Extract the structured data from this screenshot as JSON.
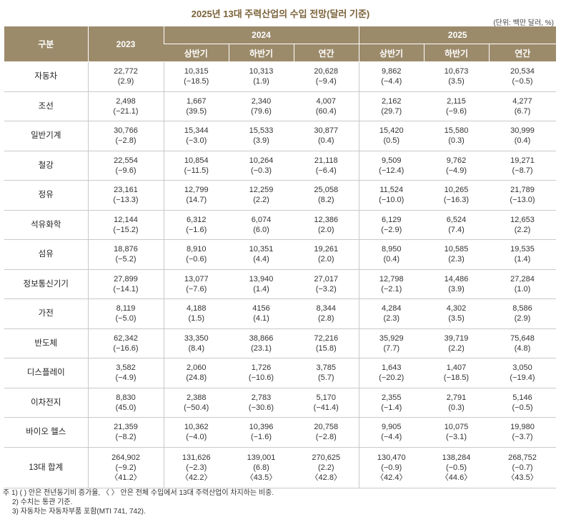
{
  "title": "2025년 13대 주력산업의 수입 전망(달러 기준)",
  "unit": "(단위: 백만 달러, %)",
  "header": {
    "category": "구분",
    "y2023": "2023",
    "y2024": "2024",
    "y2025": "2025",
    "h1": "상반기",
    "h2": "하반기",
    "annual": "연간"
  },
  "rows": [
    {
      "name": "자동차",
      "c": [
        [
          "22,772",
          "(2.9)"
        ],
        [
          "10,315",
          "(−18.5)"
        ],
        [
          "10,313",
          "(1.9)"
        ],
        [
          "20,628",
          "(−9.4)"
        ],
        [
          "9,862",
          "(−4.4)"
        ],
        [
          "10,673",
          "(3.5)"
        ],
        [
          "20,534",
          "(−0.5)"
        ]
      ]
    },
    {
      "name": "조선",
      "c": [
        [
          "2,498",
          "(−21.1)"
        ],
        [
          "1,667",
          "(39.5)"
        ],
        [
          "2,340",
          "(79.6)"
        ],
        [
          "4,007",
          "(60.4)"
        ],
        [
          "2,162",
          "(29.7)"
        ],
        [
          "2,115",
          "(−9.6)"
        ],
        [
          "4,277",
          "(6.7)"
        ]
      ]
    },
    {
      "name": "일반기계",
      "c": [
        [
          "30,766",
          "(−2.8)"
        ],
        [
          "15,344",
          "(−3.0)"
        ],
        [
          "15,533",
          "(3.9)"
        ],
        [
          "30,877",
          "(0.4)"
        ],
        [
          "15,420",
          "(0.5)"
        ],
        [
          "15,580",
          "(0.3)"
        ],
        [
          "30,999",
          "(0.4)"
        ]
      ]
    },
    {
      "name": "철강",
      "c": [
        [
          "22,554",
          "(−9.6)"
        ],
        [
          "10,854",
          "(−11.5)"
        ],
        [
          "10,264",
          "(−0.3)"
        ],
        [
          "21,118",
          "(−6.4)"
        ],
        [
          "9,509",
          "(−12.4)"
        ],
        [
          "9,762",
          "(−4.9)"
        ],
        [
          "19,271",
          "(−8.7)"
        ]
      ]
    },
    {
      "name": "정유",
      "c": [
        [
          "23,161",
          "(−13.3)"
        ],
        [
          "12,799",
          "(14.7)"
        ],
        [
          "12,259",
          "(2.2)"
        ],
        [
          "25,058",
          "(8.2)"
        ],
        [
          "11,524",
          "(−10.0)"
        ],
        [
          "10,265",
          "(−16.3)"
        ],
        [
          "21,789",
          "(−13.0)"
        ]
      ]
    },
    {
      "name": "석유화학",
      "c": [
        [
          "12,144",
          "(−15.2)"
        ],
        [
          "6,312",
          "(−1.6)"
        ],
        [
          "6,074",
          "(6.0)"
        ],
        [
          "12,386",
          "(2.0)"
        ],
        [
          "6,129",
          "(−2.9)"
        ],
        [
          "6,524",
          "(7.4)"
        ],
        [
          "12,653",
          "(2.2)"
        ]
      ]
    },
    {
      "name": "섬유",
      "c": [
        [
          "18,876",
          "(−5.2)"
        ],
        [
          "8,910",
          "(−0.6)"
        ],
        [
          "10,351",
          "(4.4)"
        ],
        [
          "19,261",
          "(2.0)"
        ],
        [
          "8,950",
          "(0.4)"
        ],
        [
          "10,585",
          "(2.3)"
        ],
        [
          "19,535",
          "(1.4)"
        ]
      ]
    },
    {
      "name": "정보통신기기",
      "c": [
        [
          "27,899",
          "(−14.1)"
        ],
        [
          "13,077",
          "(−7.6)"
        ],
        [
          "13,940",
          "(1.4)"
        ],
        [
          "27,017",
          "(−3.2)"
        ],
        [
          "12,798",
          "(−2.1)"
        ],
        [
          "14,486",
          "(3.9)"
        ],
        [
          "27,284",
          "(1.0)"
        ]
      ]
    },
    {
      "name": "가전",
      "c": [
        [
          "8,119",
          "(−5.0)"
        ],
        [
          "4,188",
          "(1.5)"
        ],
        [
          "4156",
          "(4.1)"
        ],
        [
          "8,344",
          "(2.8)"
        ],
        [
          "4,284",
          "(2.3)"
        ],
        [
          "4,302",
          "(3.5)"
        ],
        [
          "8,586",
          "(2.9)"
        ]
      ]
    },
    {
      "name": "반도체",
      "c": [
        [
          "62,342",
          "(−16.6)"
        ],
        [
          "33,350",
          "(8.4)"
        ],
        [
          "38,866",
          "(23.1)"
        ],
        [
          "72,216",
          "(15.8)"
        ],
        [
          "35,929",
          "(7.7)"
        ],
        [
          "39,719",
          "(2.2)"
        ],
        [
          "75,648",
          "(4.8)"
        ]
      ]
    },
    {
      "name": "디스플레이",
      "c": [
        [
          "3,582",
          "(−4.9)"
        ],
        [
          "2,060",
          "(24.8)"
        ],
        [
          "1,726",
          "(−10.6)"
        ],
        [
          "3,785",
          "(5.7)"
        ],
        [
          "1,643",
          "(−20.2)"
        ],
        [
          "1,407",
          "(−18.5)"
        ],
        [
          "3,050",
          "(−19.4)"
        ]
      ]
    },
    {
      "name": "이차전지",
      "c": [
        [
          "8,830",
          "(45.0)"
        ],
        [
          "2,388",
          "(−50.4)"
        ],
        [
          "2,783",
          "(−30.6)"
        ],
        [
          "5,170",
          "(−41.4)"
        ],
        [
          "2,355",
          "(−1.4)"
        ],
        [
          "2,791",
          "(0.3)"
        ],
        [
          "5,146",
          "(−0.5)"
        ]
      ]
    },
    {
      "name": "바이오 헬스",
      "c": [
        [
          "21,359",
          "(−8.2)"
        ],
        [
          "10,362",
          "(−4.0)"
        ],
        [
          "10,396",
          "(−1.6)"
        ],
        [
          "20,758",
          "(−2.8)"
        ],
        [
          "9,905",
          "(−4.4)"
        ],
        [
          "10,075",
          "(−3.1)"
        ],
        [
          "19,980",
          "(−3.7)"
        ]
      ]
    },
    {
      "name": "13대 합계",
      "total": true,
      "c": [
        [
          "264,902",
          "(−9.2)",
          "〈41.2〉"
        ],
        [
          "131,626",
          "(−2.3)",
          "〈42.2〉"
        ],
        [
          "139,001",
          "(6.8)",
          "〈43.5〉"
        ],
        [
          "270,625",
          "(2.2)",
          "〈42.8〉"
        ],
        [
          "130,470",
          "(−0.9)",
          "〈42.4〉"
        ],
        [
          "138,284",
          "(−0.5)",
          "〈44.6〉"
        ],
        [
          "268,752",
          "(−0.7)",
          "〈43.5〉"
        ]
      ]
    }
  ],
  "notes": [
    "주 1) ( ) 안은 전년동기비 증가율, 〈 〉 안은 전체 수입에서 13대 주력산업이 차지하는 비중.",
    "2) 수치는 통관 기준.",
    "3) 자동차는 자동차부품 포함(MTI 741, 742)."
  ]
}
